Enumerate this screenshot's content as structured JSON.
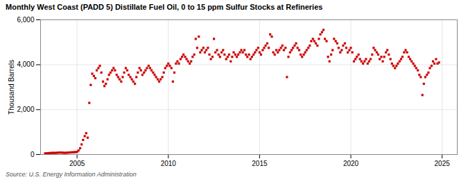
{
  "chart_data": {
    "type": "scatter",
    "title": "Monthly West Coast (PADD 5) Distillate Fuel Oil, 0 to 15 ppm Sulfur Stocks at Refineries",
    "ylabel": "Thousand Barrels",
    "caption": "Source: U.S. Energy Information Administration",
    "color": "#cc0000",
    "marker": "square",
    "grid": true,
    "xlim": [
      2003.0,
      2025.83
    ],
    "xticks": [
      2005,
      2010,
      2015,
      2020,
      2025
    ],
    "ylim": [
      0,
      6000
    ],
    "yticks": [
      0,
      {
        "value": 2000,
        "label": "2,000"
      },
      {
        "value": 4000,
        "label": "4,000"
      },
      {
        "value": 6000,
        "label": "6,000"
      }
    ],
    "x": [
      2003.25,
      2003.33,
      2003.42,
      2003.5,
      2003.58,
      2003.67,
      2003.75,
      2003.83,
      2003.92,
      2004.0,
      2004.08,
      2004.17,
      2004.25,
      2004.33,
      2004.42,
      2004.5,
      2004.58,
      2004.67,
      2004.75,
      2004.83,
      2004.92,
      2005.0,
      2005.08,
      2005.17,
      2005.25,
      2005.33,
      2005.42,
      2005.5,
      2005.58,
      2005.67,
      2005.75,
      2005.83,
      2005.92,
      2006.0,
      2006.08,
      2006.17,
      2006.25,
      2006.33,
      2006.42,
      2006.5,
      2006.58,
      2006.67,
      2006.75,
      2006.83,
      2006.92,
      2007.0,
      2007.08,
      2007.17,
      2007.25,
      2007.33,
      2007.42,
      2007.5,
      2007.58,
      2007.67,
      2007.75,
      2007.83,
      2007.92,
      2008.0,
      2008.08,
      2008.17,
      2008.25,
      2008.33,
      2008.42,
      2008.5,
      2008.58,
      2008.67,
      2008.75,
      2008.83,
      2008.92,
      2009.0,
      2009.08,
      2009.17,
      2009.25,
      2009.33,
      2009.42,
      2009.5,
      2009.58,
      2009.67,
      2009.75,
      2009.83,
      2009.92,
      2010.0,
      2010.08,
      2010.17,
      2010.25,
      2010.33,
      2010.42,
      2010.5,
      2010.58,
      2010.67,
      2010.75,
      2010.83,
      2010.92,
      2011.0,
      2011.08,
      2011.17,
      2011.25,
      2011.33,
      2011.42,
      2011.5,
      2011.58,
      2011.67,
      2011.75,
      2011.83,
      2011.92,
      2012.0,
      2012.08,
      2012.17,
      2012.25,
      2012.33,
      2012.42,
      2012.5,
      2012.58,
      2012.67,
      2012.75,
      2012.83,
      2012.92,
      2013.0,
      2013.08,
      2013.17,
      2013.25,
      2013.33,
      2013.42,
      2013.5,
      2013.58,
      2013.67,
      2013.75,
      2013.83,
      2013.92,
      2014.0,
      2014.08,
      2014.17,
      2014.25,
      2014.33,
      2014.42,
      2014.5,
      2014.58,
      2014.67,
      2014.75,
      2014.83,
      2014.92,
      2015.0,
      2015.08,
      2015.17,
      2015.25,
      2015.33,
      2015.42,
      2015.5,
      2015.58,
      2015.67,
      2015.75,
      2015.83,
      2015.92,
      2016.0,
      2016.08,
      2016.17,
      2016.25,
      2016.33,
      2016.42,
      2016.5,
      2016.58,
      2016.67,
      2016.75,
      2016.83,
      2016.92,
      2017.0,
      2017.08,
      2017.17,
      2017.25,
      2017.33,
      2017.42,
      2017.5,
      2017.58,
      2017.67,
      2017.75,
      2017.83,
      2017.92,
      2018.0,
      2018.08,
      2018.17,
      2018.25,
      2018.33,
      2018.42,
      2018.5,
      2018.58,
      2018.67,
      2018.75,
      2018.83,
      2018.92,
      2019.0,
      2019.08,
      2019.17,
      2019.25,
      2019.33,
      2019.42,
      2019.5,
      2019.58,
      2019.67,
      2019.75,
      2019.83,
      2019.92,
      2020.0,
      2020.08,
      2020.17,
      2020.25,
      2020.33,
      2020.42,
      2020.5,
      2020.58,
      2020.67,
      2020.75,
      2020.83,
      2020.92,
      2021.0,
      2021.08,
      2021.17,
      2021.25,
      2021.33,
      2021.42,
      2021.5,
      2021.58,
      2021.67,
      2021.75,
      2021.83,
      2021.92,
      2022.0,
      2022.08,
      2022.17,
      2022.25,
      2022.33,
      2022.42,
      2022.5,
      2022.58,
      2022.67,
      2022.75,
      2022.83,
      2022.92,
      2023.0,
      2023.08,
      2023.17,
      2023.25,
      2023.33,
      2023.42,
      2023.5,
      2023.58,
      2023.67,
      2023.75,
      2023.83,
      2023.92,
      2024.0,
      2024.08,
      2024.17,
      2024.25,
      2024.33,
      2024.42,
      2024.5,
      2024.58,
      2024.67,
      2024.75,
      2024.83
    ],
    "values": [
      50,
      55,
      60,
      65,
      70,
      75,
      70,
      75,
      80,
      85,
      90,
      85,
      80,
      75,
      80,
      85,
      90,
      95,
      100,
      105,
      110,
      120,
      180,
      280,
      450,
      650,
      820,
      950,
      750,
      2300,
      3100,
      3600,
      3500,
      3400,
      3750,
      3850,
      3950,
      3650,
      3250,
      3050,
      3150,
      3350,
      3550,
      3650,
      3750,
      3850,
      3750,
      3550,
      3450,
      3350,
      3250,
      3450,
      3650,
      3850,
      3750,
      3550,
      3450,
      3350,
      3250,
      3150,
      3450,
      3650,
      3850,
      3750,
      3550,
      3650,
      3750,
      3850,
      3950,
      3850,
      3750,
      3650,
      3550,
      3450,
      3350,
      3250,
      3350,
      3450,
      3650,
      3850,
      3950,
      4050,
      3950,
      3850,
      3250,
      3650,
      4050,
      4150,
      4050,
      4250,
      4350,
      4450,
      4350,
      4250,
      4150,
      4050,
      4150,
      4350,
      4450,
      5150,
      4750,
      5250,
      4550,
      4650,
      4750,
      4550,
      4650,
      4750,
      4450,
      4250,
      4350,
      5150,
      4550,
      4650,
      4450,
      4350,
      4550,
      4650,
      4450,
      4250,
      4350,
      4450,
      4150,
      4350,
      4550,
      4450,
      4350,
      4450,
      4550,
      4650,
      4550,
      4650,
      4450,
      4350,
      4450,
      4250,
      4350,
      4450,
      4550,
      4650,
      4750,
      4550,
      4450,
      4650,
      4750,
      4850,
      4950,
      4750,
      5350,
      5250,
      4550,
      4450,
      4650,
      4550,
      4650,
      4750,
      4850,
      4650,
      4750,
      3450,
      4350,
      4550,
      4650,
      4750,
      4850,
      4950,
      4750,
      4650,
      4450,
      4350,
      4450,
      4550,
      4650,
      4750,
      4850,
      5050,
      5150,
      5050,
      4950,
      4850,
      5150,
      5350,
      5450,
      5550,
      5150,
      5050,
      4350,
      4150,
      4450,
      4650,
      5150,
      5050,
      4950,
      4750,
      4550,
      4650,
      4850,
      4950,
      4750,
      4550,
      4650,
      4750,
      4550,
      4150,
      4250,
      4350,
      4450,
      4250,
      4150,
      4050,
      4150,
      4250,
      4050,
      4150,
      4250,
      4450,
      4750,
      4650,
      4550,
      4450,
      4250,
      4350,
      4150,
      4350,
      4550,
      4650,
      4450,
      4250,
      4050,
      3950,
      3850,
      3950,
      4050,
      4150,
      4250,
      4350,
      4550,
      4650,
      4550,
      4350,
      4250,
      4150,
      4050,
      3950,
      3850,
      3750,
      3550,
      3450,
      2650,
      3150,
      3450,
      3550,
      3650,
      3850,
      3950,
      4150,
      4050,
      4250,
      4050,
      4100
    ]
  }
}
